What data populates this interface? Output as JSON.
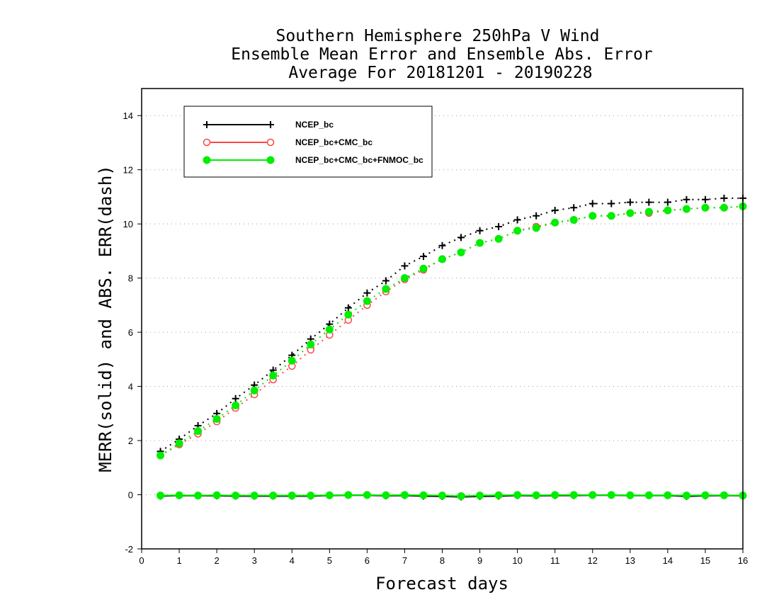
{
  "chart_data": {
    "type": "line",
    "title_lines": [
      "Southern Hemisphere 250hPa V Wind",
      "Ensemble Mean Error and Ensemble Abs. Error",
      "Average For 20181201 - 20190228"
    ],
    "xlabel": "Forecast days",
    "ylabel": "MERR(solid) and ABS. ERR(dash)",
    "xlim": [
      0,
      16
    ],
    "ylim": [
      -2,
      15
    ],
    "x_ticks": [
      "0",
      "1",
      "2",
      "3",
      "4",
      "5",
      "6",
      "7",
      "8",
      "9",
      "10",
      "11",
      "12",
      "13",
      "14",
      "15",
      "16"
    ],
    "y_ticks": [
      "-2",
      "0",
      "2",
      "4",
      "6",
      "8",
      "10",
      "12",
      "14"
    ],
    "grid": "horizontal-dotted",
    "legend_position": "top-left",
    "x": [
      0.5,
      1,
      1.5,
      2,
      2.5,
      3,
      3.5,
      4,
      4.5,
      5,
      5.5,
      6,
      6.5,
      7,
      7.5,
      8,
      8.5,
      9,
      9.5,
      10,
      10.5,
      11,
      11.5,
      12,
      12.5,
      13,
      13.5,
      14,
      14.5,
      15,
      15.5,
      16
    ],
    "series": [
      {
        "name": "NCEP_bc",
        "color": "#000000",
        "marker": "plus",
        "abs_err": [
          1.6,
          2.05,
          2.55,
          3.0,
          3.55,
          4.05,
          4.6,
          5.15,
          5.75,
          6.3,
          6.9,
          7.45,
          7.9,
          8.45,
          8.8,
          9.2,
          9.5,
          9.75,
          9.9,
          10.15,
          10.3,
          10.5,
          10.6,
          10.75,
          10.75,
          10.8,
          10.8,
          10.8,
          10.9,
          10.9,
          10.95,
          10.95
        ],
        "mean_err": [
          -0.05,
          -0.03,
          -0.04,
          -0.04,
          -0.05,
          -0.05,
          -0.05,
          -0.05,
          -0.05,
          -0.03,
          -0.02,
          -0.02,
          -0.04,
          -0.03,
          -0.05,
          -0.06,
          -0.08,
          -0.06,
          -0.05,
          -0.03,
          -0.04,
          -0.03,
          -0.03,
          -0.02,
          -0.02,
          -0.03,
          -0.03,
          -0.03,
          -0.06,
          -0.04,
          -0.03,
          -0.04
        ]
      },
      {
        "name": "NCEP_bc+CMC_bc",
        "color": "#ff4444",
        "marker": "open-circle",
        "abs_err": [
          1.45,
          1.85,
          2.25,
          2.7,
          3.2,
          3.7,
          4.25,
          4.75,
          5.35,
          5.9,
          6.45,
          7.0,
          7.5,
          7.95,
          8.3,
          8.7,
          8.95,
          9.3,
          9.45,
          9.75,
          9.9,
          10.05,
          10.15,
          10.3,
          10.3,
          10.4,
          10.4,
          10.5,
          10.55,
          10.6,
          10.6,
          10.65
        ]
      },
      {
        "name": "NCEP_bc+CMC_bc+FNMOC_bc",
        "color": "#00ee00",
        "marker": "filled-circle",
        "abs_err": [
          1.45,
          1.9,
          2.35,
          2.8,
          3.3,
          3.85,
          4.4,
          4.95,
          5.55,
          6.1,
          6.65,
          7.15,
          7.6,
          8.0,
          8.35,
          8.7,
          8.95,
          9.3,
          9.45,
          9.75,
          9.85,
          10.05,
          10.15,
          10.3,
          10.3,
          10.4,
          10.45,
          10.5,
          10.55,
          10.6,
          10.6,
          10.65
        ],
        "mean_err": [
          -0.03,
          -0.02,
          -0.03,
          -0.02,
          -0.03,
          -0.03,
          -0.03,
          -0.03,
          -0.03,
          -0.02,
          -0.01,
          -0.01,
          -0.02,
          -0.01,
          -0.02,
          -0.03,
          -0.05,
          -0.03,
          -0.02,
          -0.01,
          -0.02,
          -0.01,
          -0.01,
          -0.01,
          -0.01,
          -0.02,
          -0.02,
          -0.02,
          -0.03,
          -0.02,
          -0.02,
          -0.03
        ]
      }
    ]
  }
}
